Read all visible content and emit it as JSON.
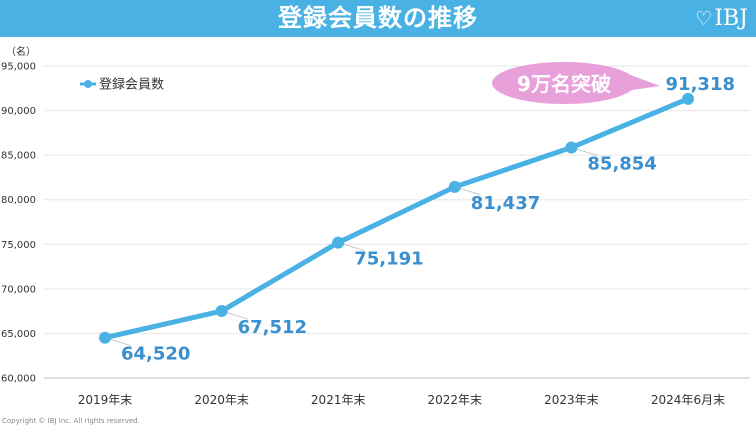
{
  "header": {
    "title": "登録会員数の推移",
    "brand": "IBJ",
    "brand_icon": "heart-outline-icon",
    "background_color": "#49b1e3"
  },
  "chart_data": {
    "type": "line",
    "title": "登録会員数の推移",
    "categories": [
      "2019年末",
      "2020年末",
      "2021年末",
      "2022年末",
      "2023年末",
      "2024年6月末"
    ],
    "series": [
      {
        "name": "登録会員数",
        "values": [
          64520,
          67512,
          75191,
          81437,
          85854,
          91318
        ],
        "color": "#49b1e3"
      }
    ],
    "data_labels": [
      "64,520",
      "67,512",
      "75,191",
      "81,437",
      "85,854",
      "91,318"
    ],
    "unit_label": "（名）",
    "ylim": [
      60000,
      95000
    ],
    "y_ticks": [
      60000,
      65000,
      70000,
      75000,
      80000,
      85000,
      90000,
      95000
    ],
    "y_tick_labels": [
      "60,000",
      "65,000",
      "70,000",
      "75,000",
      "80,000",
      "85,000",
      "90,000",
      "95,000"
    ],
    "grid": true,
    "legend_position": "top-left",
    "callout": {
      "text": "9万名突破",
      "color": "#e8a0db"
    }
  },
  "footer": {
    "copyright": "Copyright © IBJ Inc. All rights reserved."
  }
}
